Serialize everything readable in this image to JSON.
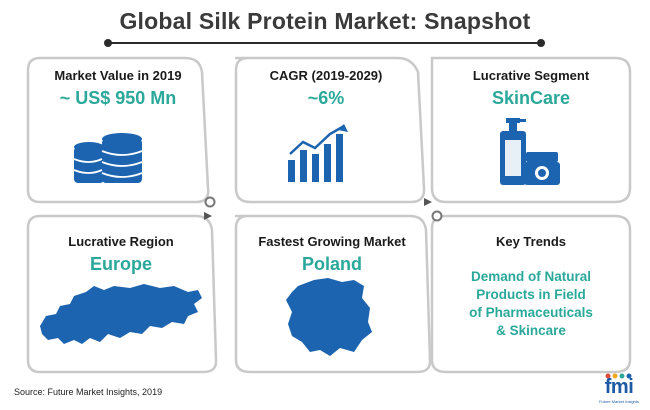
{
  "header": {
    "title": "Global Silk Protein Market: Snapshot"
  },
  "cards": [
    {
      "label": "Market Value in 2019",
      "value": "~ US$ 950 Mn",
      "icon": "database-icon"
    },
    {
      "label": "CAGR (2019-2029)",
      "value": "~6%",
      "icon": "growth-chart-icon"
    },
    {
      "label": "Lucrative Segment",
      "value": "SkinCare",
      "icon": "skincare-bottles-icon"
    },
    {
      "label": "Lucrative Region",
      "value": "Europe",
      "icon": "europe-map-icon"
    },
    {
      "label": "Fastest Growing Market",
      "value": "Poland",
      "icon": "poland-map-icon"
    },
    {
      "label": "Key Trends",
      "value": "",
      "icon": ""
    }
  ],
  "key_trends": {
    "lines": [
      "Demand of Natural",
      "Products in Field",
      "of Pharmaceuticals",
      "& Skincare"
    ]
  },
  "footer": {
    "source": "Source: Future Market Insights, 2019",
    "logo_text": "fmi",
    "logo_sub": "Future Market Insights"
  },
  "colors": {
    "accent": "#2aa89a",
    "icon_blue": "#1c63b0",
    "frame": "#c9c9c9"
  }
}
